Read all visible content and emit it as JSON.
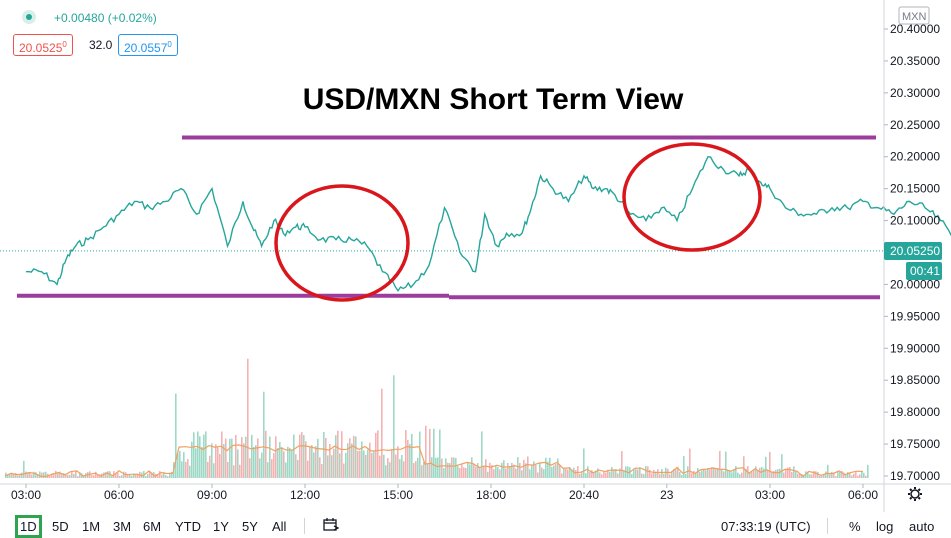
{
  "header": {
    "change": "+0.00480 (+0.02%)",
    "bid": "20.0525",
    "bid_sup": "0",
    "spread": "32.0",
    "ask": "20.0557",
    "ask_sup": "0"
  },
  "price_axis": {
    "currency_badge": "MXN",
    "last_price": "20.05250",
    "countdown": "00:41"
  },
  "bottom_bar": {
    "timeframes": [
      "1D",
      "5D",
      "1M",
      "3M",
      "6M",
      "YTD",
      "1Y",
      "5Y",
      "All"
    ],
    "active_timeframe": "1D",
    "clock": "07:33:19 (UTC)",
    "percent": "%",
    "log": "log",
    "auto": "auto"
  },
  "colors": {
    "line": "#26a69a",
    "line_down": "#ef5350",
    "support_resistance": "#9c3d9c",
    "circle": "#d9161c",
    "last_price": "#26a69a",
    "volume_up": "#9ed8c6",
    "volume_down": "#f3b3b3",
    "volume_ma": "#f0a060"
  },
  "icons": {
    "status": "green-dot-icon",
    "settings": "gear-icon",
    "range_picker": "calendar-range-icon"
  },
  "chart_data": {
    "type": "line",
    "title": "USD/MXN Short Term View",
    "ylim": [
      19.7,
      20.4
    ],
    "yticks": [
      "20.40000",
      "20.35000",
      "20.30000",
      "20.25000",
      "20.20000",
      "20.15000",
      "20.10000",
      "20.05000",
      "20.00000",
      "19.95000",
      "19.90000",
      "19.85000",
      "19.80000",
      "19.75000",
      "19.70000"
    ],
    "xticks": [
      "03:00",
      "06:00",
      "09:00",
      "12:00",
      "15:00",
      "18:00",
      "20:40",
      "23",
      "03:00",
      "06:00"
    ],
    "x_hours": [
      0,
      3,
      6,
      9,
      12,
      15,
      18,
      20.67,
      24,
      27,
      30,
      31.5
    ],
    "series": [
      {
        "x": [
          0,
          0.5,
          1,
          1.3,
          1.6,
          2,
          2.5,
          3,
          3.5,
          4,
          4.5,
          5,
          5.5,
          6,
          6.5,
          7,
          7.3,
          7.6,
          8,
          8.3,
          8.7,
          9,
          9.5,
          10,
          10.5,
          11,
          11.5,
          12,
          12.5,
          13,
          13.5,
          14,
          14.5,
          14.8,
          15.2,
          15.5,
          16,
          16.3,
          16.6,
          17,
          17.5,
          18,
          18.3,
          18.7,
          19,
          19.5,
          20,
          20.5,
          21,
          21.5,
          22,
          22.5,
          23,
          23.3,
          23.7,
          24,
          24.5,
          25,
          25.5,
          26,
          26.5,
          27,
          27.5,
          28,
          28.5,
          29,
          29.5,
          30,
          30.3,
          30.6,
          31
        ],
        "y": [
          20.02,
          20.02,
          20.0,
          20.04,
          20.06,
          20.07,
          20.09,
          20.11,
          20.13,
          20.12,
          20.13,
          20.15,
          20.11,
          20.15,
          20.06,
          20.13,
          20.09,
          20.06,
          20.1,
          20.08,
          20.09,
          20.09,
          20.07,
          20.07,
          20.07,
          20.06,
          20.02,
          19.99,
          20.0,
          20.03,
          20.12,
          20.05,
          20.02,
          20.11,
          20.06,
          20.08,
          20.08,
          20.12,
          20.17,
          20.15,
          20.13,
          20.17,
          20.15,
          20.15,
          20.14,
          20.11,
          20.1,
          20.12,
          20.1,
          20.15,
          20.2,
          20.18,
          20.17,
          20.18,
          20.16,
          20.15,
          20.12,
          20.11,
          20.11,
          20.12,
          20.12,
          20.13,
          20.12,
          20.11,
          20.13,
          20.12,
          20.1,
          20.07,
          20.05,
          20.05,
          20.05
        ]
      }
    ],
    "annotations": {
      "resistance": 20.23,
      "support": 19.98
    }
  }
}
